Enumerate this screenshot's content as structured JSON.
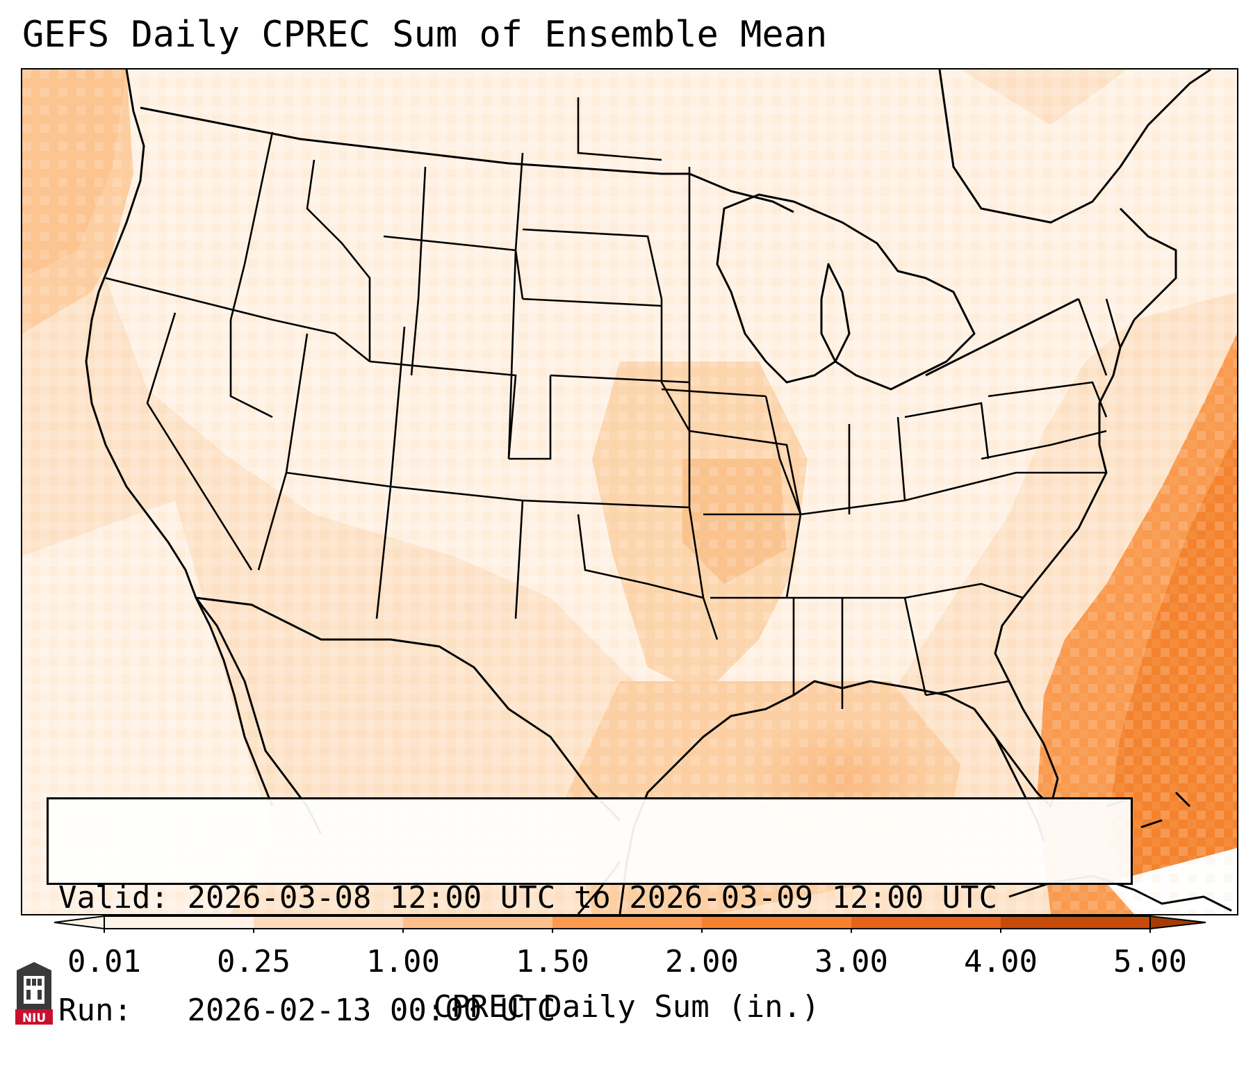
{
  "title": "GEFS Daily CPREC Sum of Ensemble Mean",
  "info": {
    "valid_label": "Valid:",
    "valid_value": "2026-03-08 12:00 UTC to 2026-03-09 12:00 UTC",
    "run_label": "Run:",
    "run_value": "2026-02-13 00:00 UTC"
  },
  "colorbar": {
    "label": "CPREC Daily Sum (in.)",
    "ticks": [
      "0.01",
      "0.25",
      "1.00",
      "1.50",
      "2.00",
      "3.00",
      "4.00",
      "5.00"
    ],
    "colors": [
      "#fff2e6",
      "#fddcbc",
      "#fdc08c",
      "#fd9a4e",
      "#f7812d",
      "#e8621a",
      "#c64a08"
    ],
    "extend": "both"
  },
  "map": {
    "projection": "lambert-conformal",
    "region": "CONUS",
    "boundaries": [
      "states",
      "coastlines",
      "country borders"
    ],
    "fill_colors": {
      "trace": "#fff4ea",
      "light": "#fde4ca",
      "moderate": "#fcd0a4",
      "heavy": "#f99a4f",
      "very_heavy": "#f07a28"
    }
  },
  "logo": {
    "text": "NIU"
  }
}
